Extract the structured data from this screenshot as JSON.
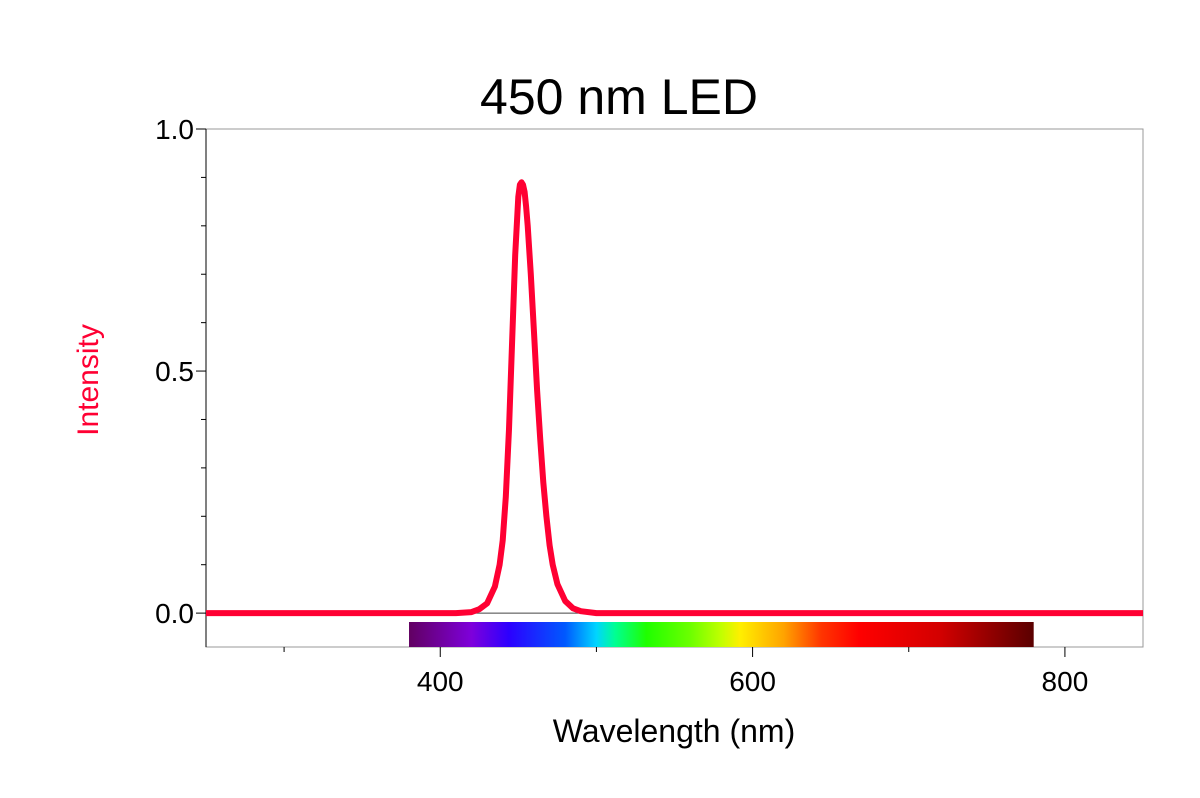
{
  "chart_data": {
    "type": "line",
    "title": "450 nm LED",
    "xlabel": "Wavelength (nm)",
    "ylabel": "Intensity",
    "xlim": [
      250,
      850
    ],
    "ylim": [
      -0.07,
      1.0
    ],
    "x_ticks": [
      400,
      600,
      800
    ],
    "x_tick_labels": [
      "400",
      "600",
      "800"
    ],
    "x_minor_ticks": [
      300,
      500,
      700
    ],
    "y_ticks": [
      0.0,
      0.5,
      1.0
    ],
    "y_tick_labels": [
      "0.0",
      "0.5",
      "1.0"
    ],
    "y_minor_ticks": [
      0.1,
      0.2,
      0.3,
      0.4,
      0.6,
      0.7,
      0.8,
      0.9
    ],
    "grid": false,
    "colors": {
      "series": "#ff0033",
      "ylabel": "#ff0033",
      "axis": "#000000",
      "frame": "#999999"
    },
    "spectrum_bar": {
      "range": [
        380,
        780
      ]
    },
    "series": [
      {
        "x": [
          250,
          300,
          350,
          400,
          410,
          420,
          425,
          430,
          435,
          438,
          440,
          442,
          444,
          446,
          448,
          450,
          451,
          452,
          453,
          454,
          455,
          456,
          458,
          460,
          462,
          464,
          466,
          468,
          470,
          472,
          475,
          480,
          485,
          490,
          500,
          520,
          550,
          600,
          700,
          800,
          850
        ],
        "y": [
          0.0,
          0.0,
          0.0,
          0.0,
          0.0,
          0.002,
          0.008,
          0.02,
          0.055,
          0.1,
          0.15,
          0.24,
          0.38,
          0.56,
          0.74,
          0.86,
          0.885,
          0.89,
          0.885,
          0.87,
          0.84,
          0.8,
          0.7,
          0.58,
          0.46,
          0.36,
          0.27,
          0.2,
          0.14,
          0.1,
          0.06,
          0.025,
          0.01,
          0.004,
          0.0,
          0.0,
          0.0,
          0.0,
          0.0,
          0.0,
          0.0
        ]
      }
    ]
  }
}
